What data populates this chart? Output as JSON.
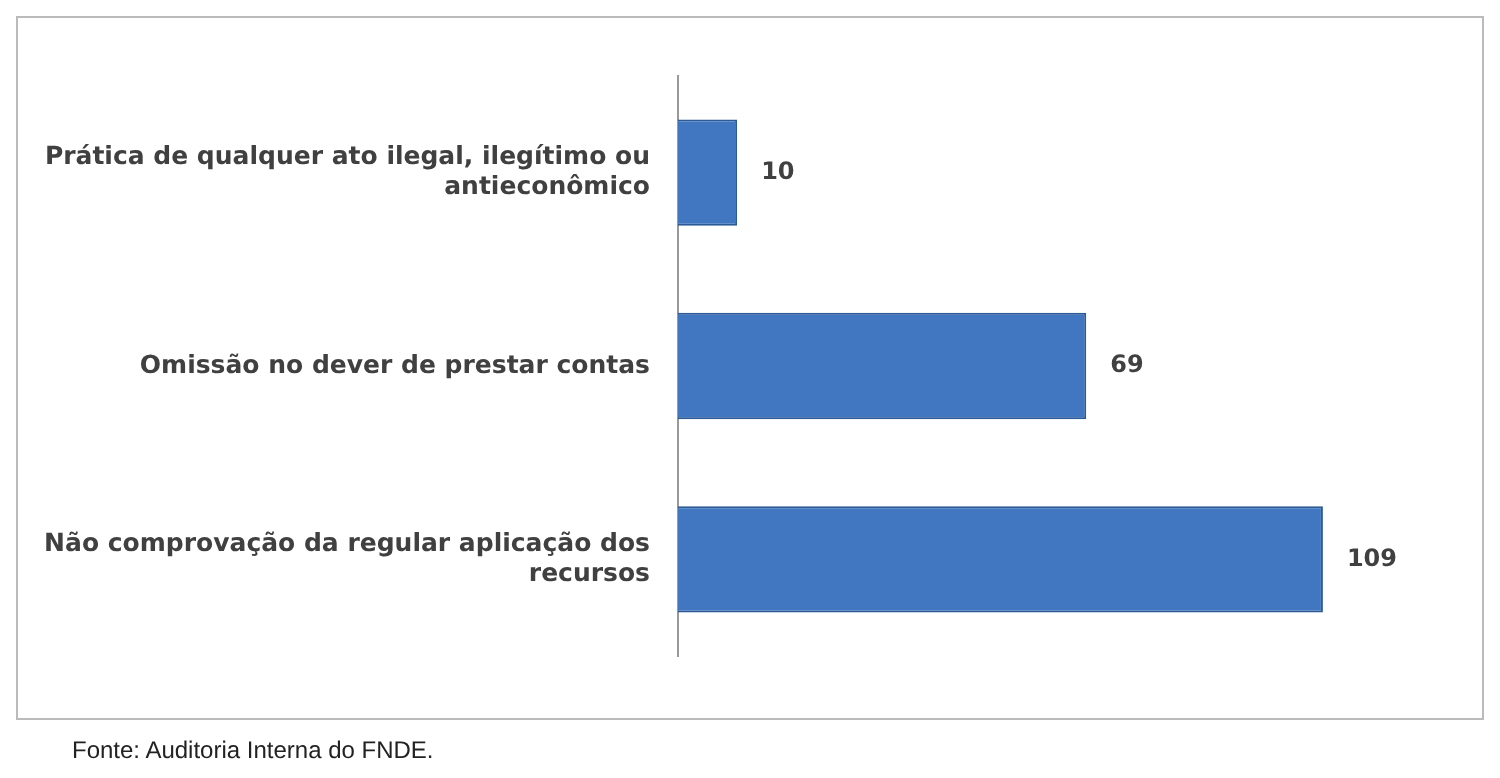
{
  "chart_data": {
    "type": "bar",
    "orientation": "horizontal",
    "categories": [
      "Prática de qualquer ato ilegal, ilegítimo ou antieconômico",
      "Omissão no dever de prestar contas",
      "Não comprovação da regular aplicação dos recursos"
    ],
    "values": [
      10,
      69,
      109
    ],
    "color": "#4077c0",
    "data_labels": true,
    "grid": false,
    "legend": false,
    "annotations": [
      "Fonte: Auditoria Interna do FNDE."
    ]
  }
}
